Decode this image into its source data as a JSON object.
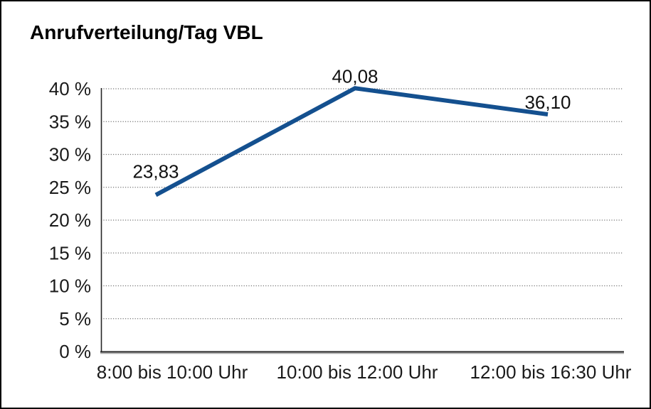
{
  "chart_data": {
    "type": "line",
    "title": "Anrufverteilung/Tag VBL",
    "categories": [
      "8:00 bis 10:00 Uhr",
      "10:00 bis 12:00 Uhr",
      "12:00 bis 16:30 Uhr"
    ],
    "series": [
      {
        "name": "Anrufverteilung/Tag VBL",
        "values": [
          23.83,
          40.08,
          36.1
        ],
        "data_labels": [
          "23,83",
          "40,08",
          "36,10"
        ]
      }
    ],
    "xlabel": "",
    "ylabel": "",
    "ylim": [
      0,
      40
    ],
    "ytick_step": 5,
    "ytick_labels": [
      "0 %",
      "5 %",
      "10 %",
      "15 %",
      "20 %",
      "25 %",
      "30 %",
      "35 %",
      "40 %"
    ],
    "grid": "horizontal-dotted",
    "legend": "none",
    "colors": {
      "line": "#14508F",
      "gridline": "#757575",
      "axis": "#262626",
      "axis_shadow": "#ababab",
      "text": "#1a1a1a",
      "background": "#ffffff",
      "frame_border": "#000000"
    }
  }
}
